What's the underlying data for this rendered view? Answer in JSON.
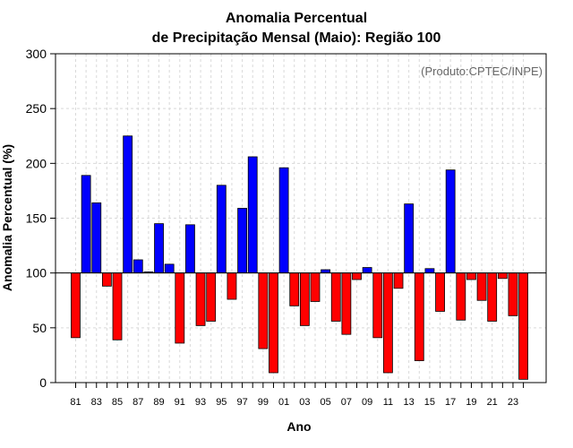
{
  "chart_data": {
    "type": "bar",
    "title_line1": "Anomalia Percentual",
    "title_line2": "de Precipitação Mensal (Maio): Região 100",
    "xlabel": "Ano",
    "ylabel": "Anomalia Percentual (%)",
    "annotation": "(Produto:CPTEC/INPE)",
    "ylim": [
      0,
      300
    ],
    "baseline": 100,
    "yticks": [
      0,
      50,
      100,
      150,
      200,
      250,
      300
    ],
    "grid": true,
    "colors": {
      "above": "#0000ff",
      "below": "#ff0000",
      "edge": "#000000",
      "grid": "#d9d9d9"
    },
    "categories": [
      "81",
      "82",
      "83",
      "84",
      "85",
      "86",
      "87",
      "88",
      "89",
      "90",
      "91",
      "92",
      "93",
      "94",
      "95",
      "96",
      "97",
      "98",
      "99",
      "00",
      "01",
      "02",
      "03",
      "04",
      "05",
      "06",
      "07",
      "08",
      "09",
      "10",
      "11",
      "12",
      "13",
      "14",
      "15",
      "16",
      "17",
      "18",
      "19",
      "20",
      "21",
      "22",
      "23",
      "24"
    ],
    "tick_labels": [
      "81",
      "",
      "83",
      "",
      "85",
      "",
      "87",
      "",
      "89",
      "",
      "91",
      "",
      "93",
      "",
      "95",
      "",
      "97",
      "",
      "99",
      "",
      "01",
      "",
      "03",
      "",
      "05",
      "",
      "07",
      "",
      "09",
      "",
      "11",
      "",
      "13",
      "",
      "15",
      "",
      "17",
      "",
      "19",
      "",
      "21",
      "",
      "23",
      ""
    ],
    "values": [
      41,
      189,
      164,
      88,
      39,
      225,
      112,
      101,
      145,
      108,
      36,
      144,
      52,
      56,
      180,
      76,
      159,
      206,
      31,
      9,
      196,
      70,
      52,
      74,
      103,
      56,
      44,
      94,
      105,
      41,
      9,
      86,
      163,
      20,
      104,
      65,
      194,
      57,
      94,
      75,
      56,
      95,
      61,
      3
    ]
  }
}
